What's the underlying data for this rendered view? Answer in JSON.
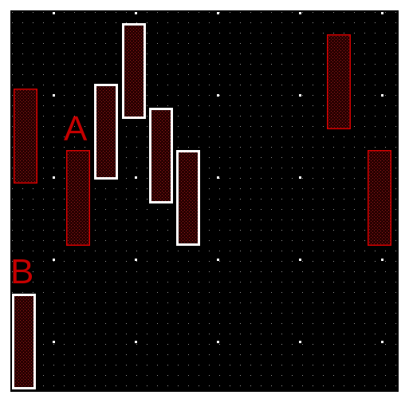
{
  "canvas": {
    "background": "#000000",
    "grid_dot_color": "#ffffff"
  },
  "labels": {
    "a": "A",
    "b": "B"
  },
  "colors": {
    "shape_fill": "#2a0000",
    "hatch": "#8b1a1a",
    "red_outline": "#d40000",
    "selected_outline": "#ffffff",
    "label": "#c40000"
  },
  "shapes": [
    {
      "name": "shape-left-red",
      "selected": false
    },
    {
      "name": "shape-a",
      "selected": false
    },
    {
      "name": "shape-selected-1",
      "selected": true
    },
    {
      "name": "shape-selected-2",
      "selected": true
    },
    {
      "name": "shape-selected-3",
      "selected": true
    },
    {
      "name": "shape-selected-4",
      "selected": true
    },
    {
      "name": "shape-top-right",
      "selected": false
    },
    {
      "name": "shape-right",
      "selected": false
    },
    {
      "name": "shape-b",
      "selected": true
    }
  ]
}
